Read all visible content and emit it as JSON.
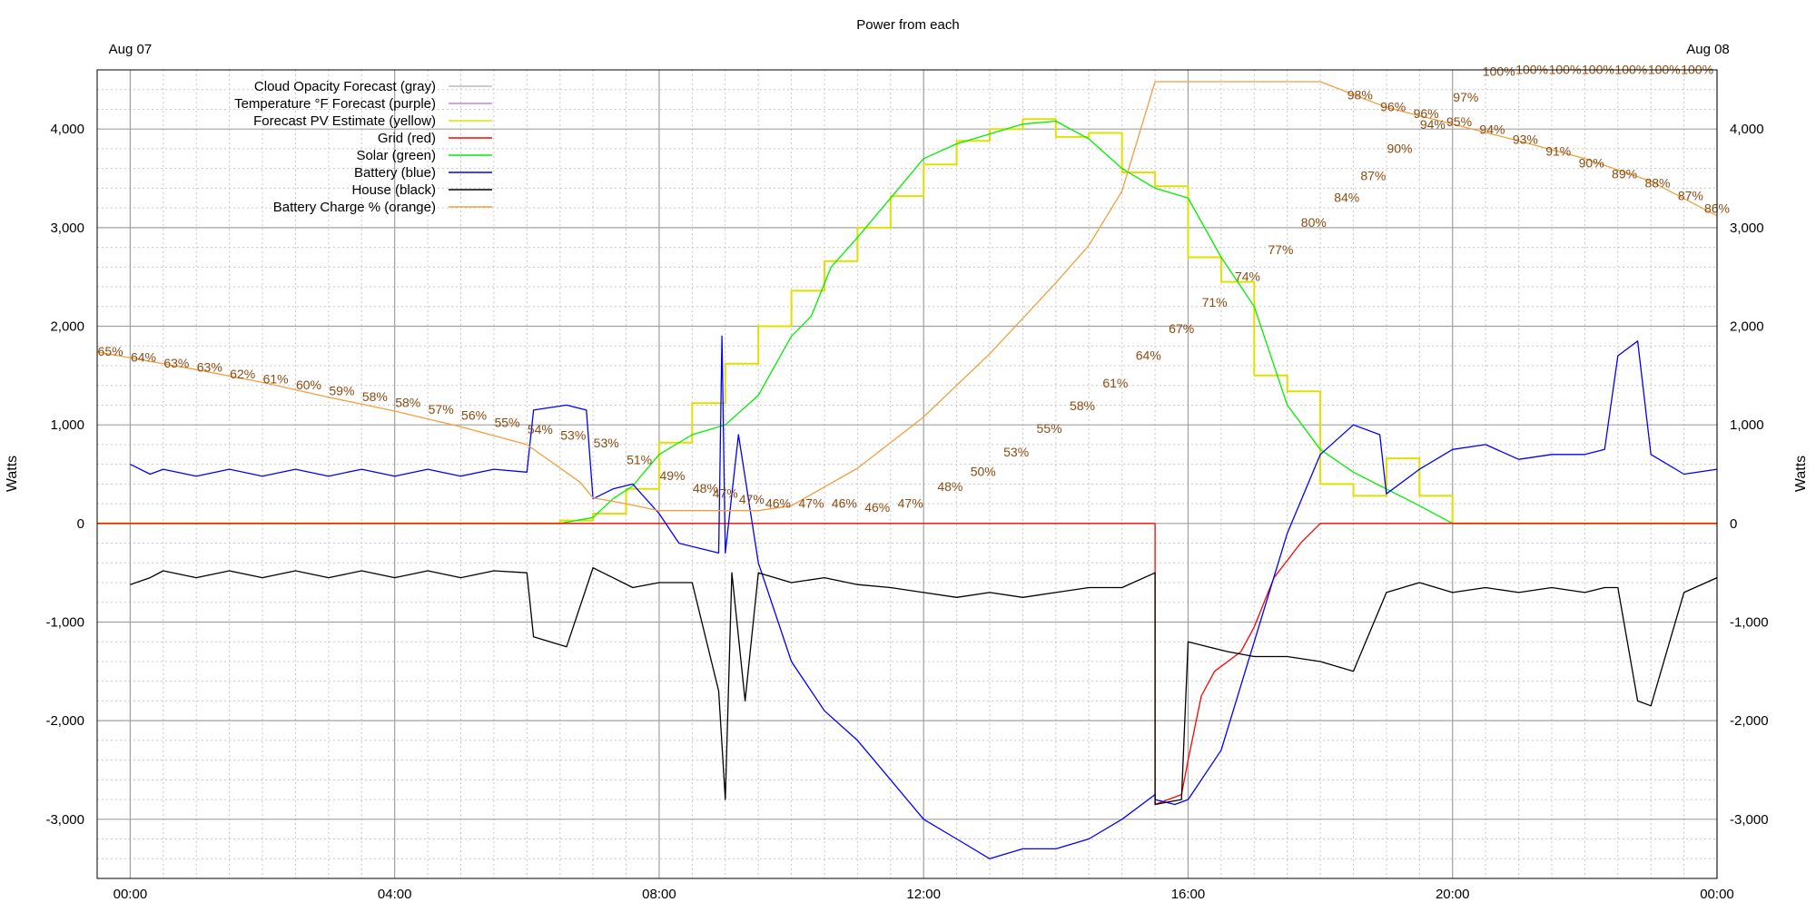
{
  "chart_data": {
    "type": "line",
    "title": "Power from each",
    "ylabel_left": "Watts",
    "ylabel_right": "Watts",
    "date_labels": [
      "Aug 07",
      "Aug 08"
    ],
    "x_ticks": [
      "00:00",
      "04:00",
      "08:00",
      "12:00",
      "16:00",
      "20:00",
      "00:00"
    ],
    "x_range_hours": [
      -0.5,
      24
    ],
    "ylim": [
      -3600,
      4600
    ],
    "y_ticks": [
      4000,
      3000,
      2000,
      1000,
      0,
      -1000,
      -2000,
      -3000
    ],
    "y_tick_labels": [
      "4,000",
      "3,000",
      "2,000",
      "1,000",
      "0",
      "-1,000",
      "-2,000",
      "-3,000"
    ],
    "grid": true,
    "legend_position": "top-left",
    "legend": [
      {
        "label": "Cloud Opacity Forecast (gray)",
        "color": "#bbbbbb"
      },
      {
        "label": "Temperature °F Forecast (purple)",
        "color": "#c080ff"
      },
      {
        "label": "Forecast PV Estimate (yellow)",
        "color": "#e0e000"
      },
      {
        "label": "Grid (red)",
        "color": "#ff0000"
      },
      {
        "label": "Solar (green)",
        "color": "#00ee00"
      },
      {
        "label": "Battery (blue)",
        "color": "#0000ff"
      },
      {
        "label": "House (black)",
        "color": "#000000"
      },
      {
        "label": "Battery Charge % (orange)",
        "color": "#f0a040"
      }
    ],
    "series": [
      {
        "name": "Forecast PV Estimate (yellow)",
        "color": "#e0e000",
        "style": "step",
        "x": [
          -0.5,
          6.5,
          7.0,
          7.5,
          8.0,
          8.5,
          9.0,
          9.5,
          10.0,
          10.5,
          11.0,
          11.5,
          12.0,
          12.5,
          13.0,
          13.5,
          14.0,
          14.5,
          15.0,
          15.5,
          16.0,
          16.5,
          17.0,
          17.5,
          18.0,
          18.5,
          19.0,
          19.5,
          20.0,
          24.0
        ],
        "y": [
          0,
          30,
          100,
          350,
          820,
          1220,
          1620,
          2000,
          2360,
          2660,
          3000,
          3320,
          3640,
          3880,
          4000,
          4100,
          3920,
          3960,
          3560,
          3420,
          2700,
          2450,
          1500,
          1340,
          400,
          280,
          660,
          280,
          0,
          0
        ]
      },
      {
        "name": "Solar (green)",
        "color": "#00ee00",
        "style": "line",
        "x": [
          -0.5,
          6.5,
          7.0,
          7.3,
          7.6,
          8.0,
          8.5,
          9.0,
          9.5,
          10.0,
          10.3,
          10.6,
          11.0,
          11.5,
          12.0,
          12.5,
          13.0,
          13.5,
          14.0,
          14.5,
          15.0,
          15.5,
          16.0,
          16.5,
          17.0,
          17.5,
          18.0,
          18.5,
          19.0,
          19.5,
          20.0,
          24.0
        ],
        "y": [
          0,
          0,
          60,
          250,
          380,
          700,
          900,
          1000,
          1300,
          1900,
          2100,
          2600,
          2900,
          3300,
          3700,
          3850,
          3950,
          4050,
          4080,
          3900,
          3600,
          3400,
          3300,
          2700,
          2200,
          1200,
          750,
          520,
          350,
          180,
          0,
          0
        ]
      },
      {
        "name": "Grid (red)",
        "color": "#ff0000",
        "style": "line",
        "x": [
          -0.5,
          15.5,
          15.5,
          15.9,
          16.0,
          16.2,
          16.4,
          16.8,
          17.0,
          17.3,
          17.7,
          18.0,
          24.0
        ],
        "y": [
          0,
          0,
          -2850,
          -2750,
          -2400,
          -1750,
          -1500,
          -1300,
          -1050,
          -550,
          -200,
          0,
          0
        ]
      },
      {
        "name": "Battery (blue)",
        "color": "#0000ff",
        "style": "line",
        "x": [
          -0.5,
          0.0,
          0.3,
          0.5,
          1.0,
          1.5,
          2.0,
          2.5,
          3.0,
          3.5,
          4.0,
          4.5,
          5.0,
          5.5,
          6.0,
          6.1,
          6.6,
          6.9,
          7.0,
          7.3,
          7.6,
          8.0,
          8.3,
          8.6,
          8.9,
          8.95,
          9.0,
          9.2,
          9.5,
          10.0,
          10.5,
          11.0,
          11.5,
          12.0,
          12.5,
          13.0,
          13.5,
          14.0,
          14.5,
          15.0,
          15.5,
          15.5,
          15.8,
          16.0,
          16.5,
          17.0,
          17.5,
          18.0,
          18.5,
          18.9,
          19.0,
          19.5,
          20.0,
          20.5,
          21.0,
          21.5,
          22.0,
          22.3,
          22.5,
          22.8,
          23.0,
          23.5,
          24.0
        ],
        "y": [
          null,
          600,
          500,
          550,
          480,
          550,
          480,
          550,
          480,
          550,
          480,
          550,
          480,
          550,
          520,
          1150,
          1200,
          1150,
          250,
          350,
          400,
          100,
          -200,
          -250,
          -300,
          1900,
          -300,
          900,
          -400,
          -1400,
          -1900,
          -2200,
          -2600,
          -3000,
          -3200,
          -3400,
          -3300,
          -3300,
          -3200,
          -3000,
          -2750,
          -2800,
          -2850,
          -2800,
          -2300,
          -1200,
          -100,
          700,
          1000,
          900,
          300,
          550,
          750,
          800,
          650,
          700,
          700,
          750,
          1700,
          1850,
          700,
          500,
          550
        ]
      },
      {
        "name": "House (black)",
        "color": "#000000",
        "style": "line",
        "x": [
          -0.5,
          0.0,
          0.3,
          0.5,
          1.0,
          1.5,
          2.0,
          2.5,
          3.0,
          3.5,
          4.0,
          4.5,
          5.0,
          5.5,
          6.0,
          6.1,
          6.6,
          7.0,
          7.3,
          7.6,
          8.0,
          8.5,
          8.9,
          9.0,
          9.1,
          9.3,
          9.5,
          10.0,
          10.5,
          11.0,
          11.5,
          12.0,
          12.5,
          13.0,
          13.5,
          14.0,
          14.5,
          15.0,
          15.5,
          15.5,
          15.9,
          16.0,
          16.3,
          16.6,
          17.0,
          17.5,
          18.0,
          18.5,
          19.0,
          19.5,
          20.0,
          20.5,
          21.0,
          21.5,
          22.0,
          22.3,
          22.5,
          22.8,
          23.0,
          23.5,
          24.0
        ],
        "y": [
          null,
          -620,
          -550,
          -480,
          -550,
          -480,
          -550,
          -480,
          -550,
          -480,
          -550,
          -480,
          -550,
          -480,
          -500,
          -1150,
          -1250,
          -450,
          -550,
          -650,
          -600,
          -600,
          -1700,
          -2800,
          -500,
          -1800,
          -500,
          -600,
          -550,
          -620,
          -650,
          -700,
          -750,
          -700,
          -750,
          -700,
          -650,
          -650,
          -500,
          -2850,
          -2800,
          -1200,
          -1250,
          -1300,
          -1350,
          -1350,
          -1400,
          -1500,
          -700,
          -600,
          -700,
          -650,
          -700,
          -650,
          -700,
          -650,
          -650,
          -1800,
          -1850,
          -700,
          -550
        ]
      },
      {
        "name": "Battery Charge % (orange)",
        "color": "#f0a040",
        "style": "line",
        "x": [
          -0.5,
          1.0,
          2.0,
          3.0,
          4.0,
          5.0,
          6.0,
          6.8,
          7.0,
          7.5,
          8.0,
          8.5,
          9.0,
          9.5,
          10.0,
          11.0,
          12.0,
          13.0,
          14.0,
          14.5,
          15.0,
          15.5,
          16.0,
          17.0,
          18.0,
          19.0,
          20.0,
          21.0,
          22.0,
          23.0,
          24.0
        ],
        "y": [
          1740,
          1560,
          1430,
          1280,
          1140,
          980,
          800,
          420,
          260,
          200,
          130,
          130,
          130,
          130,
          180,
          560,
          1080,
          1720,
          2440,
          2820,
          3370,
          4480,
          4480,
          4480,
          4480,
          4220,
          4050,
          3880,
          3700,
          3470,
          3120
        ]
      }
    ],
    "annotations_battery_pct": [
      {
        "x": -0.3,
        "y": 1700,
        "text": "65%"
      },
      {
        "x": 0.2,
        "y": 1640,
        "text": "64%"
      },
      {
        "x": 0.7,
        "y": 1580,
        "text": "63%"
      },
      {
        "x": 1.2,
        "y": 1540,
        "text": "63%"
      },
      {
        "x": 1.7,
        "y": 1470,
        "text": "62%"
      },
      {
        "x": 2.2,
        "y": 1420,
        "text": "61%"
      },
      {
        "x": 2.7,
        "y": 1360,
        "text": "60%"
      },
      {
        "x": 3.2,
        "y": 1300,
        "text": "59%"
      },
      {
        "x": 3.7,
        "y": 1240,
        "text": "58%"
      },
      {
        "x": 4.2,
        "y": 1180,
        "text": "58%"
      },
      {
        "x": 4.7,
        "y": 1110,
        "text": "57%"
      },
      {
        "x": 5.2,
        "y": 1050,
        "text": "56%"
      },
      {
        "x": 5.7,
        "y": 980,
        "text": "55%"
      },
      {
        "x": 6.2,
        "y": 910,
        "text": "54%"
      },
      {
        "x": 6.7,
        "y": 850,
        "text": "53%"
      },
      {
        "x": 7.2,
        "y": 770,
        "text": "53%"
      },
      {
        "x": 7.7,
        "y": 600,
        "text": "51%"
      },
      {
        "x": 8.2,
        "y": 440,
        "text": "49%"
      },
      {
        "x": 8.7,
        "y": 310,
        "text": "48%"
      },
      {
        "x": 9.0,
        "y": 260,
        "text": "47%"
      },
      {
        "x": 9.4,
        "y": 200,
        "text": "47%"
      },
      {
        "x": 9.8,
        "y": 160,
        "text": "46%"
      },
      {
        "x": 10.3,
        "y": 160,
        "text": "47%"
      },
      {
        "x": 10.8,
        "y": 160,
        "text": "46%"
      },
      {
        "x": 11.3,
        "y": 120,
        "text": "46%"
      },
      {
        "x": 11.8,
        "y": 160,
        "text": "47%"
      },
      {
        "x": 12.4,
        "y": 330,
        "text": "48%"
      },
      {
        "x": 12.9,
        "y": 480,
        "text": "50%"
      },
      {
        "x": 13.4,
        "y": 680,
        "text": "53%"
      },
      {
        "x": 13.9,
        "y": 920,
        "text": "55%"
      },
      {
        "x": 14.4,
        "y": 1150,
        "text": "58%"
      },
      {
        "x": 14.9,
        "y": 1380,
        "text": "61%"
      },
      {
        "x": 15.4,
        "y": 1660,
        "text": "64%"
      },
      {
        "x": 15.9,
        "y": 1930,
        "text": "67%"
      },
      {
        "x": 16.4,
        "y": 2200,
        "text": "71%"
      },
      {
        "x": 16.9,
        "y": 2460,
        "text": "74%"
      },
      {
        "x": 17.4,
        "y": 2730,
        "text": "77%"
      },
      {
        "x": 17.9,
        "y": 3010,
        "text": "80%"
      },
      {
        "x": 18.4,
        "y": 3260,
        "text": "84%"
      },
      {
        "x": 18.8,
        "y": 3480,
        "text": "87%"
      },
      {
        "x": 19.2,
        "y": 3760,
        "text": "90%"
      },
      {
        "x": 19.7,
        "y": 4000,
        "text": "94%"
      },
      {
        "x": 20.2,
        "y": 4280,
        "text": "97%"
      },
      {
        "x": 20.7,
        "y": 4540,
        "text": "100%"
      },
      {
        "x": 21.2,
        "y": 4560,
        "text": "100%"
      },
      {
        "x": 21.7,
        "y": 4560,
        "text": "100%"
      },
      {
        "x": 22.2,
        "y": 4560,
        "text": "100%"
      },
      {
        "x": 22.7,
        "y": 4560,
        "text": "100%"
      },
      {
        "x": 23.2,
        "y": 4560,
        "text": "100%"
      },
      {
        "x": 23.7,
        "y": 4560,
        "text": "100%"
      }
    ],
    "annotations_battery_pct_late": [
      {
        "x": 18.6,
        "y": 4300,
        "text": "98%"
      },
      {
        "x": 19.1,
        "y": 4180,
        "text": "96%"
      },
      {
        "x": 19.6,
        "y": 4110,
        "text": "96%"
      },
      {
        "x": 20.1,
        "y": 4030,
        "text": "95%"
      },
      {
        "x": 20.6,
        "y": 3950,
        "text": "94%"
      },
      {
        "x": 21.1,
        "y": 3850,
        "text": "93%"
      },
      {
        "x": 21.6,
        "y": 3730,
        "text": "91%"
      },
      {
        "x": 22.1,
        "y": 3610,
        "text": "90%"
      },
      {
        "x": 22.6,
        "y": 3500,
        "text": "89%"
      },
      {
        "x": 23.1,
        "y": 3410,
        "text": "88%"
      },
      {
        "x": 23.6,
        "y": 3280,
        "text": "87%"
      },
      {
        "x": 24.0,
        "y": 3150,
        "text": "86%"
      }
    ]
  }
}
